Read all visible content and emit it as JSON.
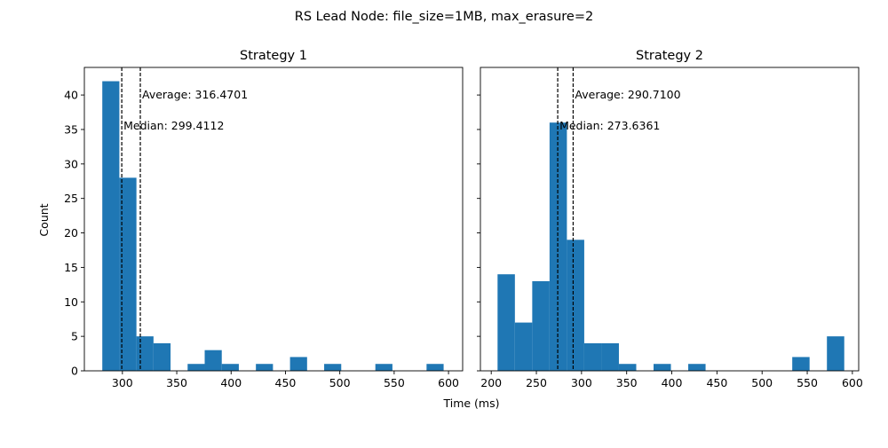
{
  "figure": {
    "suptitle": "RS Lead Node: file_size=1MB, max_erasure=2",
    "xlabel": "Time (ms)",
    "ylabel": "Count"
  },
  "chart_data": [
    {
      "type": "bar",
      "subtype": "histogram",
      "title": "Strategy 1",
      "xlabel": "Time (ms)",
      "ylabel": "Count",
      "xlim": [
        265,
        613
      ],
      "ylim": [
        0,
        44
      ],
      "xticks": [
        300,
        350,
        400,
        450,
        500,
        550,
        600
      ],
      "yticks": [
        0,
        5,
        10,
        15,
        20,
        25,
        30,
        35,
        40
      ],
      "bins": [
        {
          "x0": 281.5,
          "x1": 297.2,
          "count": 42
        },
        {
          "x0": 297.2,
          "x1": 312.9,
          "count": 28
        },
        {
          "x0": 312.9,
          "x1": 328.6,
          "count": 5
        },
        {
          "x0": 328.6,
          "x1": 344.3,
          "count": 4
        },
        {
          "x0": 344.3,
          "x1": 360.0,
          "count": 0
        },
        {
          "x0": 360.0,
          "x1": 375.7,
          "count": 1
        },
        {
          "x0": 375.7,
          "x1": 391.4,
          "count": 3
        },
        {
          "x0": 391.4,
          "x1": 407.1,
          "count": 1
        },
        {
          "x0": 407.1,
          "x1": 422.8,
          "count": 0
        },
        {
          "x0": 422.8,
          "x1": 438.5,
          "count": 1
        },
        {
          "x0": 438.5,
          "x1": 454.2,
          "count": 0
        },
        {
          "x0": 454.2,
          "x1": 469.9,
          "count": 2
        },
        {
          "x0": 469.9,
          "x1": 485.6,
          "count": 0
        },
        {
          "x0": 485.6,
          "x1": 501.3,
          "count": 1
        },
        {
          "x0": 501.3,
          "x1": 517.0,
          "count": 0
        },
        {
          "x0": 517.0,
          "x1": 532.7,
          "count": 0
        },
        {
          "x0": 532.7,
          "x1": 548.4,
          "count": 1
        },
        {
          "x0": 548.4,
          "x1": 564.1,
          "count": 0
        },
        {
          "x0": 564.1,
          "x1": 579.8,
          "count": 0
        },
        {
          "x0": 579.8,
          "x1": 595.5,
          "count": 1
        }
      ],
      "color": "#1f77b4",
      "median": 299.4112,
      "average": 316.4701,
      "median_label": "Median: 299.4112",
      "average_label": "Average: 316.4701",
      "median_label_y": 35.5,
      "average_label_y": 40,
      "grid": false
    },
    {
      "type": "bar",
      "subtype": "histogram",
      "title": "Strategy 2",
      "xlabel": "Time (ms)",
      "ylabel": "Count",
      "xlim": [
        188,
        607
      ],
      "ylim": [
        0,
        44
      ],
      "xticks": [
        200,
        250,
        300,
        350,
        400,
        450,
        500,
        550,
        600
      ],
      "yticks": [
        0,
        5,
        10,
        15,
        20,
        25,
        30,
        35,
        40
      ],
      "bins": [
        {
          "x0": 207.0,
          "x1": 226.2,
          "count": 14
        },
        {
          "x0": 226.2,
          "x1": 245.4,
          "count": 7
        },
        {
          "x0": 245.4,
          "x1": 264.6,
          "count": 13
        },
        {
          "x0": 264.6,
          "x1": 283.8,
          "count": 36
        },
        {
          "x0": 283.8,
          "x1": 303.0,
          "count": 19
        },
        {
          "x0": 303.0,
          "x1": 322.2,
          "count": 4
        },
        {
          "x0": 322.2,
          "x1": 341.4,
          "count": 4
        },
        {
          "x0": 341.4,
          "x1": 360.6,
          "count": 1
        },
        {
          "x0": 360.6,
          "x1": 379.8,
          "count": 0
        },
        {
          "x0": 379.8,
          "x1": 399.0,
          "count": 1
        },
        {
          "x0": 399.0,
          "x1": 418.2,
          "count": 0
        },
        {
          "x0": 418.2,
          "x1": 437.4,
          "count": 1
        },
        {
          "x0": 437.4,
          "x1": 456.6,
          "count": 0
        },
        {
          "x0": 456.6,
          "x1": 475.8,
          "count": 0
        },
        {
          "x0": 475.8,
          "x1": 495.0,
          "count": 0
        },
        {
          "x0": 495.0,
          "x1": 514.2,
          "count": 0
        },
        {
          "x0": 514.2,
          "x1": 533.4,
          "count": 0
        },
        {
          "x0": 533.4,
          "x1": 552.6,
          "count": 2
        },
        {
          "x0": 552.6,
          "x1": 571.8,
          "count": 0
        },
        {
          "x0": 571.8,
          "x1": 591.0,
          "count": 5
        }
      ],
      "color": "#1f77b4",
      "median": 273.6361,
      "average": 290.71,
      "median_label": "Median: 273.6361",
      "average_label": "Average: 290.7100",
      "median_label_y": 35.5,
      "average_label_y": 40,
      "grid": false
    }
  ]
}
